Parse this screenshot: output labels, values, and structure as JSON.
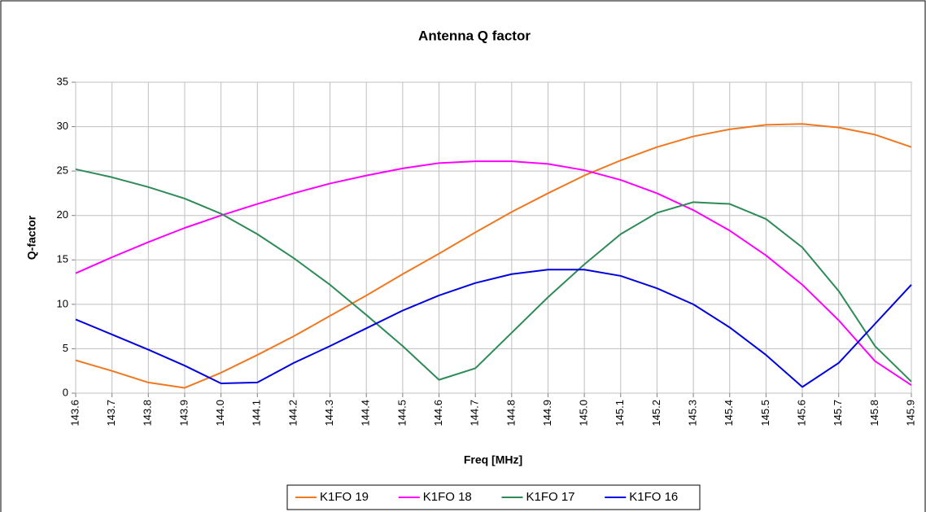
{
  "chart_data": {
    "type": "line",
    "title": "Antenna Q factor",
    "x_label": "Freq [MHz]",
    "y_label": "Q-factor",
    "x": [
      143.6,
      143.7,
      143.8,
      143.9,
      144.0,
      144.1,
      144.2,
      144.3,
      144.4,
      144.5,
      144.6,
      144.7,
      144.8,
      144.9,
      145.0,
      145.1,
      145.2,
      145.3,
      145.4,
      145.5,
      145.6,
      145.7,
      145.8,
      145.9
    ],
    "series": [
      {
        "name": "K1FO 19",
        "color": "#f07820",
        "values": [
          3.7,
          2.5,
          1.2,
          0.6,
          2.3,
          4.3,
          6.4,
          8.7,
          11.0,
          13.4,
          15.7,
          18.1,
          20.4,
          22.5,
          24.5,
          26.2,
          27.7,
          28.9,
          29.7,
          30.2,
          30.3,
          29.9,
          29.1,
          27.7
        ]
      },
      {
        "name": "K1FO 18",
        "color": "#ff00ff",
        "values": [
          13.5,
          15.3,
          17.0,
          18.6,
          20.0,
          21.3,
          22.5,
          23.6,
          24.5,
          25.3,
          25.9,
          26.1,
          26.1,
          25.8,
          25.1,
          24.0,
          22.5,
          20.6,
          18.3,
          15.5,
          12.2,
          8.2,
          3.6,
          0.9
        ]
      },
      {
        "name": "K1FO 17",
        "color": "#2e8b57",
        "values": [
          25.2,
          24.3,
          23.2,
          21.9,
          20.2,
          17.9,
          15.2,
          12.2,
          8.8,
          5.3,
          1.5,
          2.8,
          6.8,
          10.8,
          14.5,
          17.9,
          20.3,
          21.5,
          21.3,
          19.6,
          16.4,
          11.5,
          5.3,
          1.3
        ]
      },
      {
        "name": "K1FO 16",
        "color": "#0000e0",
        "values": [
          8.3,
          6.6,
          4.9,
          3.1,
          1.1,
          1.2,
          3.4,
          5.3,
          7.3,
          9.3,
          11.0,
          12.4,
          13.4,
          13.9,
          13.9,
          13.2,
          11.8,
          10.0,
          7.4,
          4.3,
          0.7,
          3.4,
          7.8,
          12.2
        ]
      }
    ],
    "xlim": [
      143.6,
      145.9
    ],
    "xticks": [
      143.6,
      143.7,
      143.8,
      143.9,
      {
        "value": 144.0,
        "label": "144.0"
      },
      144.1,
      144.2,
      144.3,
      144.4,
      144.5,
      144.6,
      144.7,
      144.8,
      144.9,
      {
        "value": 145.0,
        "label": "145.0"
      },
      145.1,
      145.2,
      145.3,
      145.4,
      145.5,
      145.6,
      145.7,
      145.8,
      145.9
    ],
    "ylim": [
      0,
      35
    ],
    "yticks": [
      0,
      5,
      10,
      15,
      20,
      25,
      30,
      35
    ],
    "grid": true,
    "legend": "bottom"
  }
}
